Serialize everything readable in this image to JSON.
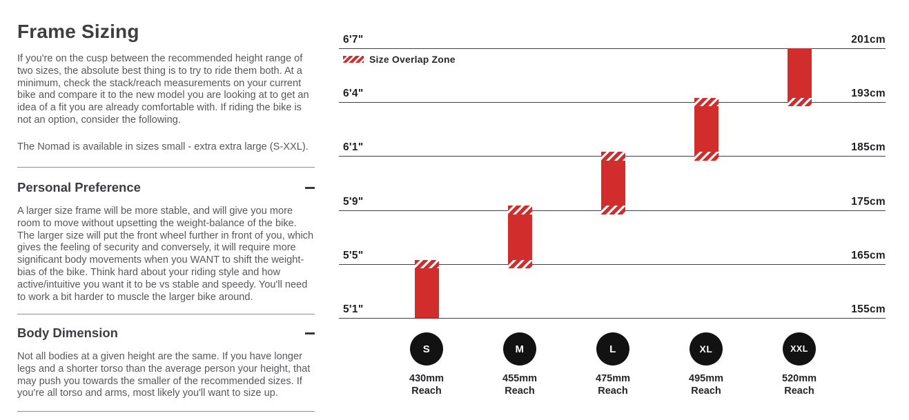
{
  "left_panel": {
    "title": "Frame Sizing",
    "intro_paragraph": "If you're on the cusp between the recommended height range of two sizes, the absolute best thing is to try to ride them both. At a minimum, check the stack/reach measurements on your current bike and compare it to the new model you are looking at to get an idea of a fit you are already comfortable with. If riding the bike is not an option, consider the following.",
    "availability_paragraph": "The Nomad is available in sizes small - extra extra large (S-XXL).",
    "sections": [
      {
        "heading": "Personal Preference",
        "toggle_state": "expanded",
        "body": "A larger size frame will be more stable, and will give you more room to move without upsetting the weight-balance of the bike. The larger size will put the front wheel further in front of you, which gives the feeling of security and conversely, it will require more significant body movements when you WANT to shift the weight-bias of the bike. Think hard about your riding style and how active/intuitive you want it to be vs stable and speedy. You'll need to work a bit harder to muscle the larger bike around."
      },
      {
        "heading": "Body Dimension",
        "toggle_state": "expanded",
        "body": "Not all bodies at a given height are the same. If you have longer legs and a shorter torso than the average person your height, that may push you towards the smaller of the recommended sizes. If you're all torso and arms, most likely you'll want to size up."
      }
    ]
  },
  "chart_data": {
    "type": "bar",
    "title": "",
    "legend": {
      "label": "Size Overlap Zone",
      "swatch": "red-diagonal-hatch",
      "position": "top-left"
    },
    "reach_suffix": "Reach",
    "axis_rows": [
      {
        "row": 0,
        "imperial": "5'1\"",
        "metric": "155cm"
      },
      {
        "row": 1,
        "imperial": "5'5\"",
        "metric": "165cm"
      },
      {
        "row": 2,
        "imperial": "5'9\"",
        "metric": "175cm"
      },
      {
        "row": 3,
        "imperial": "6'1\"",
        "metric": "185cm"
      },
      {
        "row": 4,
        "imperial": "6'4\"",
        "metric": "193cm"
      },
      {
        "row": 5,
        "imperial": "6'7\"",
        "metric": "201cm"
      }
    ],
    "sizes": [
      {
        "label": "S",
        "reach": "430mm",
        "height_range_imperial": "5'1\"-5'5\"",
        "height_range_metric": "155-165cm",
        "bar": {
          "bottom_row": 0,
          "top_row": 1.08,
          "hatch_bottom": false,
          "hatch_top": true
        }
      },
      {
        "label": "M",
        "reach": "455mm",
        "height_range_imperial": "5'5\"-5'9\"",
        "height_range_metric": "165-175cm",
        "bar": {
          "bottom_row": 0.92,
          "top_row": 2.08,
          "hatch_bottom": true,
          "hatch_top": true
        }
      },
      {
        "label": "L",
        "reach": "475mm",
        "height_range_imperial": "5'9\"-6'1\"",
        "height_range_metric": "175-185cm",
        "bar": {
          "bottom_row": 1.92,
          "top_row": 3.08,
          "hatch_bottom": true,
          "hatch_top": true
        }
      },
      {
        "label": "XL",
        "reach": "495mm",
        "height_range_imperial": "6'1\"-6'4\"",
        "height_range_metric": "185-193cm",
        "bar": {
          "bottom_row": 2.92,
          "top_row": 4.08,
          "hatch_bottom": true,
          "hatch_top": true
        }
      },
      {
        "label": "XXL",
        "reach": "520mm",
        "height_range_imperial": "6'4\"-6'7\"",
        "height_range_metric": "193-201cm",
        "bar": {
          "bottom_row": 3.92,
          "top_row": 5.0,
          "hatch_bottom": true,
          "hatch_top": false
        }
      }
    ],
    "colors": {
      "bar": "#d22d2d",
      "grid_line": "#3f3f3f",
      "circle": "#121212",
      "circle_text": "#ffffff"
    }
  }
}
